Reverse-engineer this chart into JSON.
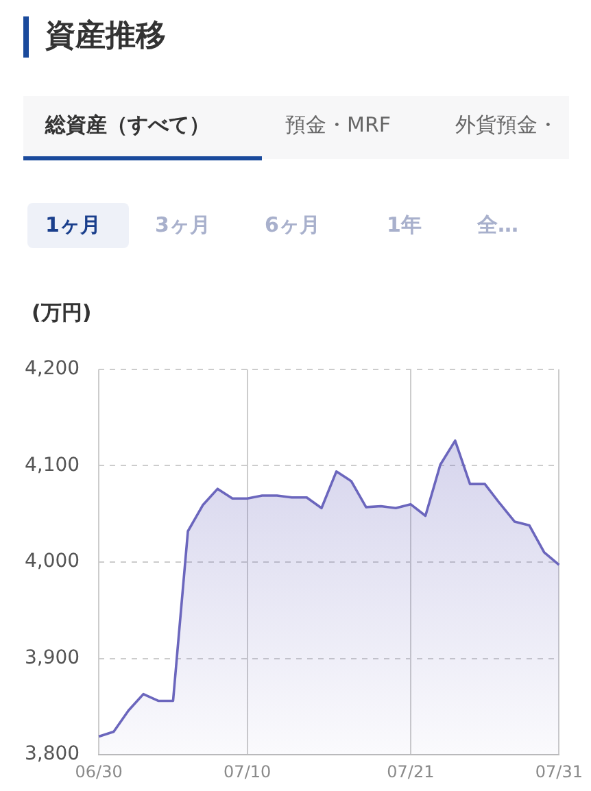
{
  "chart_data": {
    "type": "area",
    "title": "資産推移",
    "ylabel": "(万円)",
    "annotations": [
      "総資産（すべて）",
      "預金・MRF",
      "外貨預金・",
      "1ヶ月",
      "3ヶ月",
      "6ヶ月",
      "1年",
      "全…"
    ],
    "categories": [
      "06/30",
      null,
      null,
      null,
      null,
      null,
      null,
      null,
      null,
      null,
      "07/10",
      null,
      null,
      null,
      null,
      null,
      null,
      null,
      null,
      null,
      null,
      "07/21",
      null,
      null,
      null,
      null,
      null,
      null,
      null,
      null,
      null,
      "07/31"
    ],
    "series": [
      {
        "color": "#6b66bd",
        "values": [
          3819,
          3824,
          3846,
          3863,
          3856,
          3856,
          4032,
          4059,
          4076,
          4066,
          4066,
          4069,
          4069,
          4067,
          4067,
          4056,
          4094,
          4084,
          4057,
          4058,
          4056,
          4060,
          4048,
          4101,
          4126,
          4081,
          4081,
          4061,
          4042,
          4038,
          4010,
          3997
        ]
      }
    ],
    "ylim": [
      3800,
      4200
    ],
    "yticks": [
      {
        "value": 3800,
        "label": "3,800"
      },
      {
        "value": 3900,
        "label": "3,900"
      },
      {
        "value": 4000,
        "label": "4,000"
      },
      {
        "value": 4100,
        "label": "4,100"
      },
      {
        "value": 4200,
        "label": "4,200"
      }
    ],
    "grid": true,
    "legend": false,
    "marker": "none",
    "line_style": "solid"
  }
}
